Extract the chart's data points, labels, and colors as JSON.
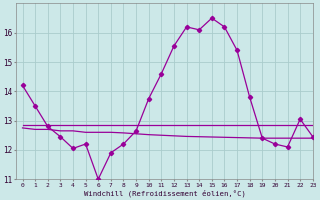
{
  "xlabel": "Windchill (Refroidissement éolien,°C)",
  "background_color": "#cce8e8",
  "grid_color": "#aacccc",
  "line_color": "#990099",
  "x": [
    0,
    1,
    2,
    3,
    4,
    5,
    6,
    7,
    8,
    9,
    10,
    11,
    12,
    13,
    14,
    15,
    16,
    17,
    18,
    19,
    20,
    21,
    22,
    23
  ],
  "y_main": [
    14.2,
    13.5,
    12.8,
    12.45,
    12.05,
    12.2,
    11.0,
    11.9,
    12.2,
    12.65,
    13.75,
    14.6,
    15.55,
    16.2,
    16.1,
    16.5,
    16.2,
    15.4,
    13.8,
    12.4,
    12.2,
    12.1,
    13.05,
    12.45
  ],
  "y_upper": [
    12.85,
    12.85,
    12.85,
    12.85,
    12.85,
    12.85,
    12.85,
    12.85,
    12.85,
    12.85,
    12.85,
    12.85,
    12.85,
    12.85,
    12.85,
    12.85,
    12.85,
    12.85,
    12.85,
    12.85,
    12.85,
    12.85,
    12.85,
    12.85
  ],
  "y_lower": [
    12.75,
    12.7,
    12.7,
    12.65,
    12.65,
    12.6,
    12.6,
    12.6,
    12.58,
    12.55,
    12.52,
    12.5,
    12.48,
    12.46,
    12.45,
    12.44,
    12.43,
    12.42,
    12.41,
    12.4,
    12.4,
    12.4,
    12.4,
    12.4
  ],
  "ylim": [
    11,
    17
  ],
  "xlim": [
    -0.5,
    23
  ],
  "yticks": [
    11,
    12,
    13,
    14,
    15,
    16
  ],
  "xticks": [
    0,
    1,
    2,
    3,
    4,
    5,
    6,
    7,
    8,
    9,
    10,
    11,
    12,
    13,
    14,
    15,
    16,
    17,
    18,
    19,
    20,
    21,
    22,
    23
  ]
}
